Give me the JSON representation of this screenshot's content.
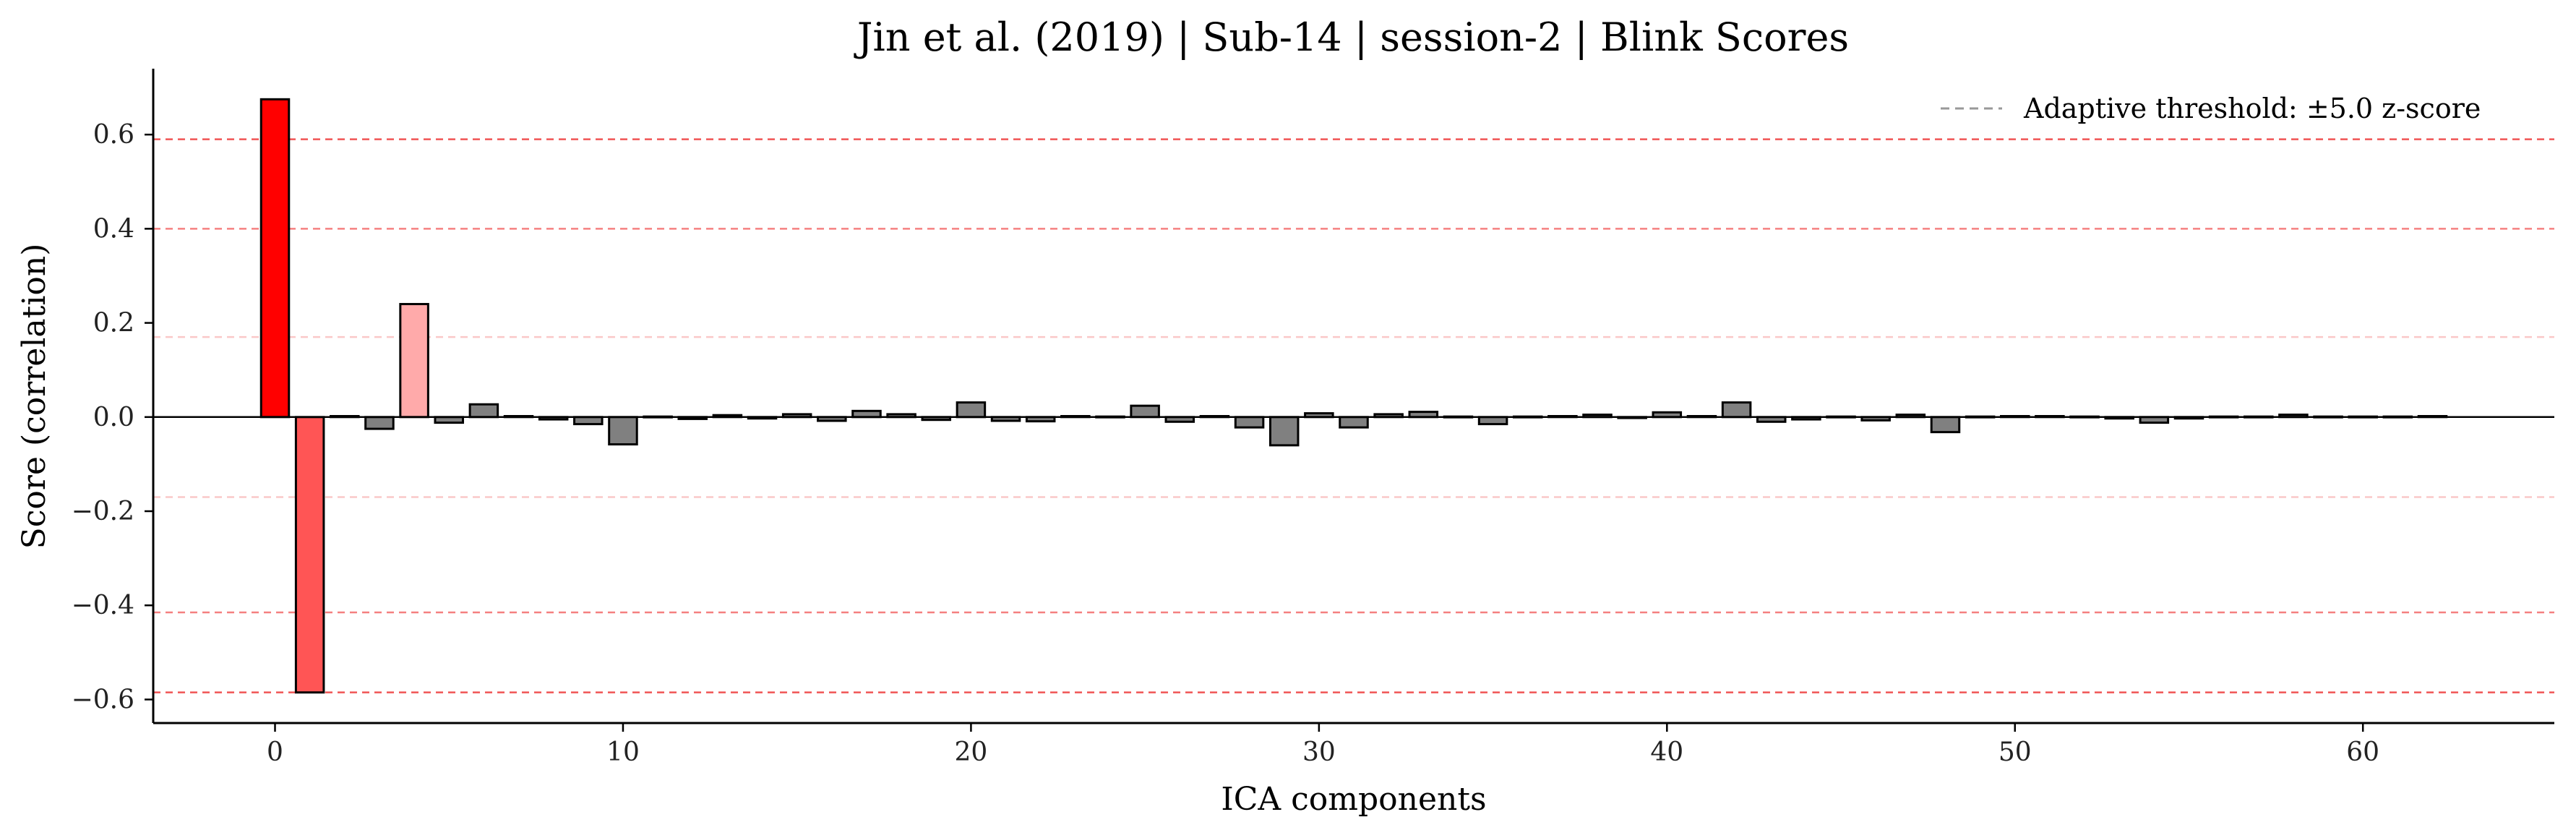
{
  "chart_data": {
    "type": "bar",
    "title": "Jin et al. (2019) | Sub-14 | session-2 | Blink Scores",
    "xlabel": "ICA components",
    "ylabel": "Score (correlation)",
    "xlim": [
      -3.5,
      65.5
    ],
    "ylim": [
      -0.65,
      0.74
    ],
    "xticks": [
      0,
      10,
      20,
      30,
      40,
      50,
      60
    ],
    "yticks": [
      -0.6,
      -0.4,
      -0.2,
      0.0,
      0.2,
      0.4,
      0.6
    ],
    "ytick_labels": [
      "−0.6",
      "−0.4",
      "−0.2",
      "0.0",
      "0.2",
      "0.4",
      "0.6"
    ],
    "x": [
      0,
      1,
      2,
      3,
      4,
      5,
      6,
      7,
      8,
      9,
      10,
      11,
      12,
      13,
      14,
      15,
      16,
      17,
      18,
      19,
      20,
      21,
      22,
      23,
      24,
      25,
      26,
      27,
      28,
      29,
      30,
      31,
      32,
      33,
      34,
      35,
      36,
      37,
      38,
      39,
      40,
      41,
      42,
      43,
      44,
      45,
      46,
      47,
      48,
      49,
      50,
      51,
      52,
      53,
      54,
      55,
      56,
      57,
      58,
      59,
      60,
      61,
      62
    ],
    "values": [
      0.675,
      -0.585,
      0.002,
      -0.025,
      0.24,
      -0.012,
      0.027,
      0.002,
      -0.005,
      -0.015,
      -0.058,
      0.001,
      -0.004,
      0.004,
      -0.003,
      0.006,
      -0.008,
      0.013,
      0.006,
      -0.006,
      0.031,
      -0.008,
      -0.009,
      0.002,
      0.001,
      0.024,
      -0.01,
      0.002,
      -0.022,
      -0.06,
      0.008,
      -0.022,
      0.006,
      0.011,
      0.001,
      -0.015,
      0.001,
      0.002,
      0.005,
      -0.002,
      0.01,
      0.002,
      0.031,
      -0.01,
      -0.005,
      0.001,
      -0.007,
      0.005,
      -0.032,
      0.001,
      0.002,
      0.002,
      0.001,
      -0.003,
      -0.012,
      -0.003,
      0.001,
      0.001,
      0.005,
      0.001,
      0.001,
      0.001,
      0.002
    ],
    "bar_colors": {
      "0": "#ff0000",
      "1": "#ff5555",
      "4": "#ffaaaa",
      "default": "#808080"
    },
    "bar_edge_color": "#000000",
    "zero_line_color": "#000000",
    "threshold_lines": [
      {
        "y": 0.59,
        "color": "#f05555"
      },
      {
        "y": 0.4,
        "color": "#f58080"
      },
      {
        "y": 0.17,
        "color": "#fac8c8"
      },
      {
        "y": -0.17,
        "color": "#fac8c8"
      },
      {
        "y": -0.415,
        "color": "#f58080"
      },
      {
        "y": -0.585,
        "color": "#f05555"
      }
    ],
    "legend": {
      "placement": "top-right",
      "entries": [
        {
          "label": "Adaptive threshold: ±5.0 z-score",
          "style": "dashed",
          "color": "#999999"
        }
      ]
    },
    "grid": false
  }
}
